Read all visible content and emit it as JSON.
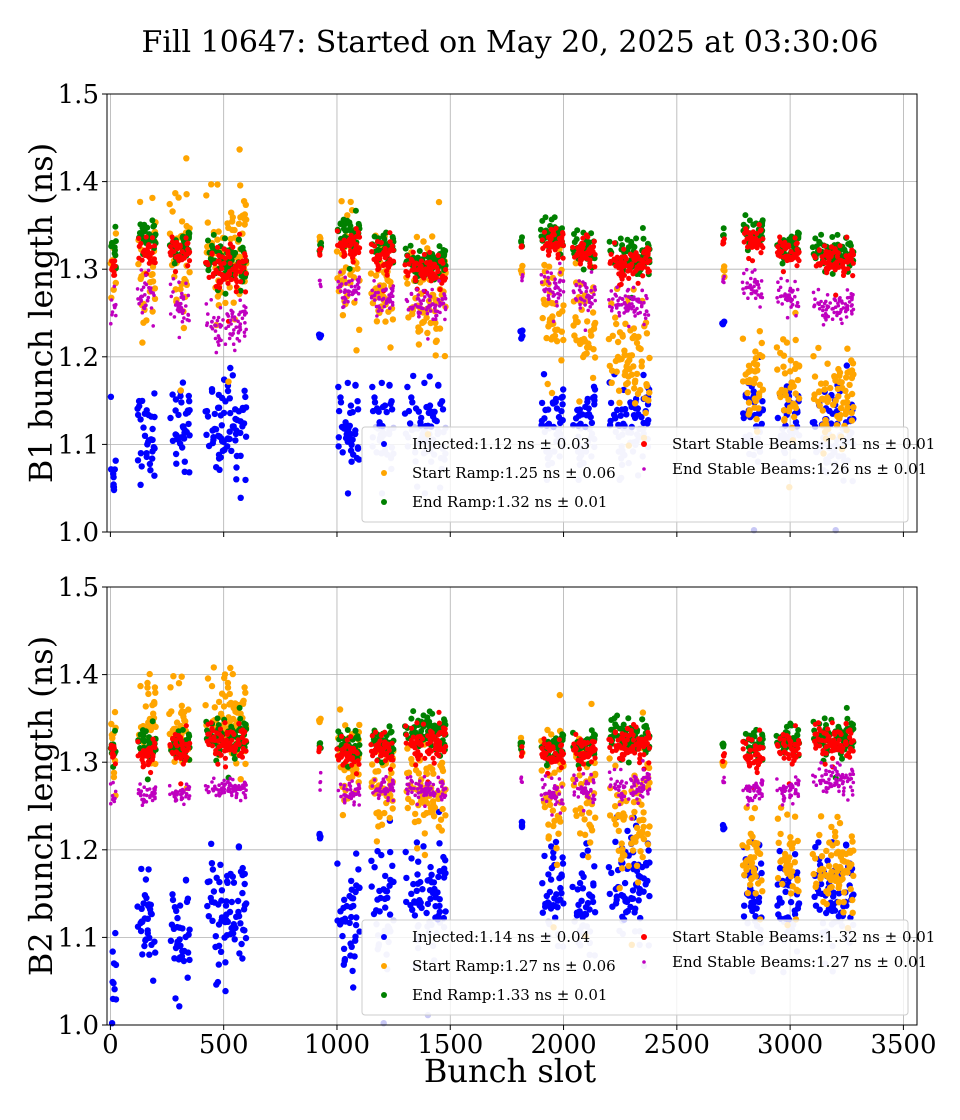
{
  "figure": {
    "title": "Fill 10647: Started on May 20, 2025 at 03:30:06",
    "xlabel": "Bunch slot"
  },
  "colors": {
    "Injected": "#0000ff",
    "Start Ramp": "#ffa500",
    "End Ramp": "#008000",
    "Start Stable Beams": "#ff0000",
    "End Stable Beams": "#bf00bf",
    "light": "#c8c8f5"
  },
  "chart_data": [
    {
      "type": "scatter",
      "ylabel": "B1 bunch length (ns)",
      "xlim": [
        -15,
        3560
      ],
      "ylim": [
        1.0,
        1.5
      ],
      "xticks": [
        0,
        500,
        1000,
        1500,
        2000,
        2500,
        3000,
        3500
      ],
      "yticks": [
        1.0,
        1.1,
        1.2,
        1.3,
        1.4,
        1.5
      ],
      "grid": true,
      "legend_position": "lower-right",
      "legend": [
        "Injected:1.12 ns ± 0.03",
        "Start Ramp:1.25 ns ± 0.06",
        "End Ramp:1.32 ns ± 0.01",
        "Start Stable Beams:1.31 ns ± 0.01",
        "End Stable Beams:1.26 ns ± 0.01"
      ],
      "trains": [
        {
          "range": [
            0,
            25
          ],
          "inj": [
            1.08,
            0.035
          ],
          "sr": [
            1.3,
            0.03
          ],
          "er": [
            1.32,
            0.01
          ],
          "ssb": [
            1.3,
            0.01
          ],
          "esb": [
            1.26,
            0.01
          ]
        },
        {
          "range": [
            120,
            200
          ],
          "inj": [
            1.11,
            0.03
          ],
          "sr": [
            1.31,
            0.04
          ],
          "er": [
            1.34,
            0.01
          ],
          "ssb": [
            1.32,
            0.01
          ],
          "esb": [
            1.27,
            0.015
          ]
        },
        {
          "range": [
            260,
            350
          ],
          "inj": [
            1.12,
            0.03
          ],
          "sr": [
            1.32,
            0.04
          ],
          "er": [
            1.33,
            0.01
          ],
          "ssb": [
            1.32,
            0.01
          ],
          "esb": [
            1.26,
            0.015
          ]
        },
        {
          "range": [
            420,
            600
          ],
          "inj": [
            1.12,
            0.035
          ],
          "sr": [
            1.33,
            0.04
          ],
          "er": [
            1.31,
            0.015
          ],
          "ssb": [
            1.3,
            0.015
          ],
          "esb": [
            1.24,
            0.015
          ]
        },
        {
          "range": [
            920,
            930
          ],
          "inj": [
            1.225,
            0.003
          ],
          "sr": [
            1.335,
            0.005
          ],
          "er": [
            1.33,
            0.004
          ],
          "ssb": [
            1.32,
            0.004
          ],
          "esb": [
            1.285,
            0.003
          ]
        },
        {
          "range": [
            1000,
            1100
          ],
          "inj": [
            1.12,
            0.03
          ],
          "sr": [
            1.3,
            0.04
          ],
          "er": [
            1.34,
            0.01
          ],
          "ssb": [
            1.33,
            0.01
          ],
          "esb": [
            1.28,
            0.01
          ]
        },
        {
          "range": [
            1150,
            1250
          ],
          "inj": [
            1.12,
            0.03
          ],
          "sr": [
            1.28,
            0.03
          ],
          "er": [
            1.325,
            0.01
          ],
          "ssb": [
            1.315,
            0.01
          ],
          "esb": [
            1.27,
            0.01
          ]
        },
        {
          "range": [
            1300,
            1480
          ],
          "inj": [
            1.12,
            0.03
          ],
          "sr": [
            1.27,
            0.04
          ],
          "er": [
            1.31,
            0.01
          ],
          "ssb": [
            1.3,
            0.01
          ],
          "esb": [
            1.26,
            0.01
          ]
        },
        {
          "range": [
            1810,
            1820
          ],
          "inj": [
            1.225,
            0.003
          ],
          "sr": [
            1.3,
            0.005
          ],
          "er": [
            1.335,
            0.004
          ],
          "ssb": [
            1.325,
            0.004
          ],
          "esb": [
            1.29,
            0.003
          ]
        },
        {
          "range": [
            1900,
            2000
          ],
          "inj": [
            1.13,
            0.03
          ],
          "sr": [
            1.26,
            0.04
          ],
          "er": [
            1.34,
            0.01
          ],
          "ssb": [
            1.33,
            0.01
          ],
          "esb": [
            1.28,
            0.01
          ]
        },
        {
          "range": [
            2040,
            2140
          ],
          "inj": [
            1.13,
            0.03
          ],
          "sr": [
            1.24,
            0.04
          ],
          "er": [
            1.325,
            0.01
          ],
          "ssb": [
            1.32,
            0.01
          ],
          "esb": [
            1.27,
            0.01
          ]
        },
        {
          "range": [
            2200,
            2380
          ],
          "inj": [
            1.13,
            0.03
          ],
          "sr": [
            1.2,
            0.04
          ],
          "er": [
            1.315,
            0.012
          ],
          "ssb": [
            1.31,
            0.012
          ],
          "esb": [
            1.26,
            0.01
          ]
        },
        {
          "range": [
            2700,
            2710
          ],
          "inj": [
            1.24,
            0.003
          ],
          "sr": [
            1.3,
            0.005
          ],
          "er": [
            1.34,
            0.004
          ],
          "ssb": [
            1.33,
            0.004
          ],
          "esb": [
            1.29,
            0.003
          ]
        },
        {
          "range": [
            2790,
            2880
          ],
          "inj": [
            1.12,
            0.03
          ],
          "sr": [
            1.18,
            0.03
          ],
          "er": [
            1.345,
            0.01
          ],
          "ssb": [
            1.335,
            0.01
          ],
          "esb": [
            1.28,
            0.01
          ]
        },
        {
          "range": [
            2940,
            3040
          ],
          "inj": [
            1.12,
            0.03
          ],
          "sr": [
            1.17,
            0.03
          ],
          "er": [
            1.33,
            0.01
          ],
          "ssb": [
            1.32,
            0.01
          ],
          "esb": [
            1.27,
            0.01
          ]
        },
        {
          "range": [
            3100,
            3280
          ],
          "inj": [
            1.11,
            0.03
          ],
          "sr": [
            1.16,
            0.03
          ],
          "er": [
            1.32,
            0.01
          ],
          "ssb": [
            1.31,
            0.01
          ],
          "esb": [
            1.26,
            0.01
          ]
        }
      ]
    },
    {
      "type": "scatter",
      "ylabel": "B2 bunch length (ns)",
      "xlim": [
        -15,
        3560
      ],
      "ylim": [
        1.0,
        1.5
      ],
      "xticks": [
        0,
        500,
        1000,
        1500,
        2000,
        2500,
        3000,
        3500
      ],
      "yticks": [
        1.0,
        1.1,
        1.2,
        1.3,
        1.4,
        1.5
      ],
      "grid": true,
      "legend_position": "lower-right",
      "legend": [
        "Injected:1.14 ns ± 0.04",
        "Start Ramp:1.27 ns ± 0.06",
        "End Ramp:1.33 ns ± 0.01",
        "Start Stable Beams:1.32 ns ± 0.01",
        "End Stable Beams:1.27 ns ± 0.01"
      ],
      "trains": [
        {
          "range": [
            0,
            25
          ],
          "inj": [
            1.07,
            0.04
          ],
          "sr": [
            1.31,
            0.03
          ],
          "er": [
            1.32,
            0.01
          ],
          "ssb": [
            1.31,
            0.01
          ],
          "esb": [
            1.26,
            0.01
          ]
        },
        {
          "range": [
            120,
            200
          ],
          "inj": [
            1.12,
            0.03
          ],
          "sr": [
            1.35,
            0.03
          ],
          "er": [
            1.32,
            0.01
          ],
          "ssb": [
            1.31,
            0.01
          ],
          "esb": [
            1.265,
            0.006
          ]
        },
        {
          "range": [
            260,
            350
          ],
          "inj": [
            1.11,
            0.035
          ],
          "sr": [
            1.34,
            0.03
          ],
          "er": [
            1.32,
            0.01
          ],
          "ssb": [
            1.315,
            0.01
          ],
          "esb": [
            1.265,
            0.006
          ]
        },
        {
          "range": [
            420,
            600
          ],
          "inj": [
            1.14,
            0.04
          ],
          "sr": [
            1.35,
            0.03
          ],
          "er": [
            1.33,
            0.012
          ],
          "ssb": [
            1.325,
            0.012
          ],
          "esb": [
            1.27,
            0.006
          ]
        },
        {
          "range": [
            920,
            930
          ],
          "inj": [
            1.215,
            0.003
          ],
          "sr": [
            1.35,
            0.004
          ],
          "er": [
            1.32,
            0.004
          ],
          "ssb": [
            1.31,
            0.004
          ],
          "esb": [
            1.28,
            0.003
          ]
        },
        {
          "range": [
            1000,
            1100
          ],
          "inj": [
            1.13,
            0.04
          ],
          "sr": [
            1.31,
            0.03
          ],
          "er": [
            1.32,
            0.01
          ],
          "ssb": [
            1.31,
            0.01
          ],
          "esb": [
            1.265,
            0.008
          ]
        },
        {
          "range": [
            1150,
            1250
          ],
          "inj": [
            1.14,
            0.035
          ],
          "sr": [
            1.28,
            0.03
          ],
          "er": [
            1.325,
            0.01
          ],
          "ssb": [
            1.315,
            0.01
          ],
          "esb": [
            1.27,
            0.008
          ]
        },
        {
          "range": [
            1300,
            1480
          ],
          "inj": [
            1.15,
            0.035
          ],
          "sr": [
            1.27,
            0.03
          ],
          "er": [
            1.335,
            0.012
          ],
          "ssb": [
            1.325,
            0.012
          ],
          "esb": [
            1.27,
            0.008
          ]
        },
        {
          "range": [
            1810,
            1820
          ],
          "inj": [
            1.23,
            0.003
          ],
          "sr": [
            1.32,
            0.004
          ],
          "er": [
            1.32,
            0.004
          ],
          "ssb": [
            1.31,
            0.004
          ],
          "esb": [
            1.28,
            0.003
          ]
        },
        {
          "range": [
            1900,
            2000
          ],
          "inj": [
            1.15,
            0.035
          ],
          "sr": [
            1.27,
            0.04
          ],
          "er": [
            1.32,
            0.01
          ],
          "ssb": [
            1.31,
            0.01
          ],
          "esb": [
            1.265,
            0.01
          ]
        },
        {
          "range": [
            2040,
            2140
          ],
          "inj": [
            1.14,
            0.035
          ],
          "sr": [
            1.26,
            0.04
          ],
          "er": [
            1.32,
            0.01
          ],
          "ssb": [
            1.315,
            0.01
          ],
          "esb": [
            1.27,
            0.01
          ]
        },
        {
          "range": [
            2200,
            2380
          ],
          "inj": [
            1.16,
            0.04
          ],
          "sr": [
            1.25,
            0.04
          ],
          "er": [
            1.33,
            0.012
          ],
          "ssb": [
            1.32,
            0.012
          ],
          "esb": [
            1.275,
            0.01
          ]
        },
        {
          "range": [
            2700,
            2710
          ],
          "inj": [
            1.225,
            0.003
          ],
          "sr": [
            1.3,
            0.004
          ],
          "er": [
            1.32,
            0.004
          ],
          "ssb": [
            1.31,
            0.004
          ],
          "esb": [
            1.28,
            0.003
          ]
        },
        {
          "range": [
            2790,
            2880
          ],
          "inj": [
            1.15,
            0.035
          ],
          "sr": [
            1.19,
            0.03
          ],
          "er": [
            1.32,
            0.01
          ],
          "ssb": [
            1.31,
            0.01
          ],
          "esb": [
            1.27,
            0.008
          ]
        },
        {
          "range": [
            2940,
            3040
          ],
          "inj": [
            1.14,
            0.035
          ],
          "sr": [
            1.19,
            0.03
          ],
          "er": [
            1.325,
            0.01
          ],
          "ssb": [
            1.315,
            0.01
          ],
          "esb": [
            1.27,
            0.008
          ]
        },
        {
          "range": [
            3100,
            3280
          ],
          "inj": [
            1.15,
            0.035
          ],
          "sr": [
            1.18,
            0.03
          ],
          "er": [
            1.33,
            0.012
          ],
          "ssb": [
            1.325,
            0.012
          ],
          "esb": [
            1.28,
            0.01
          ]
        }
      ]
    }
  ]
}
